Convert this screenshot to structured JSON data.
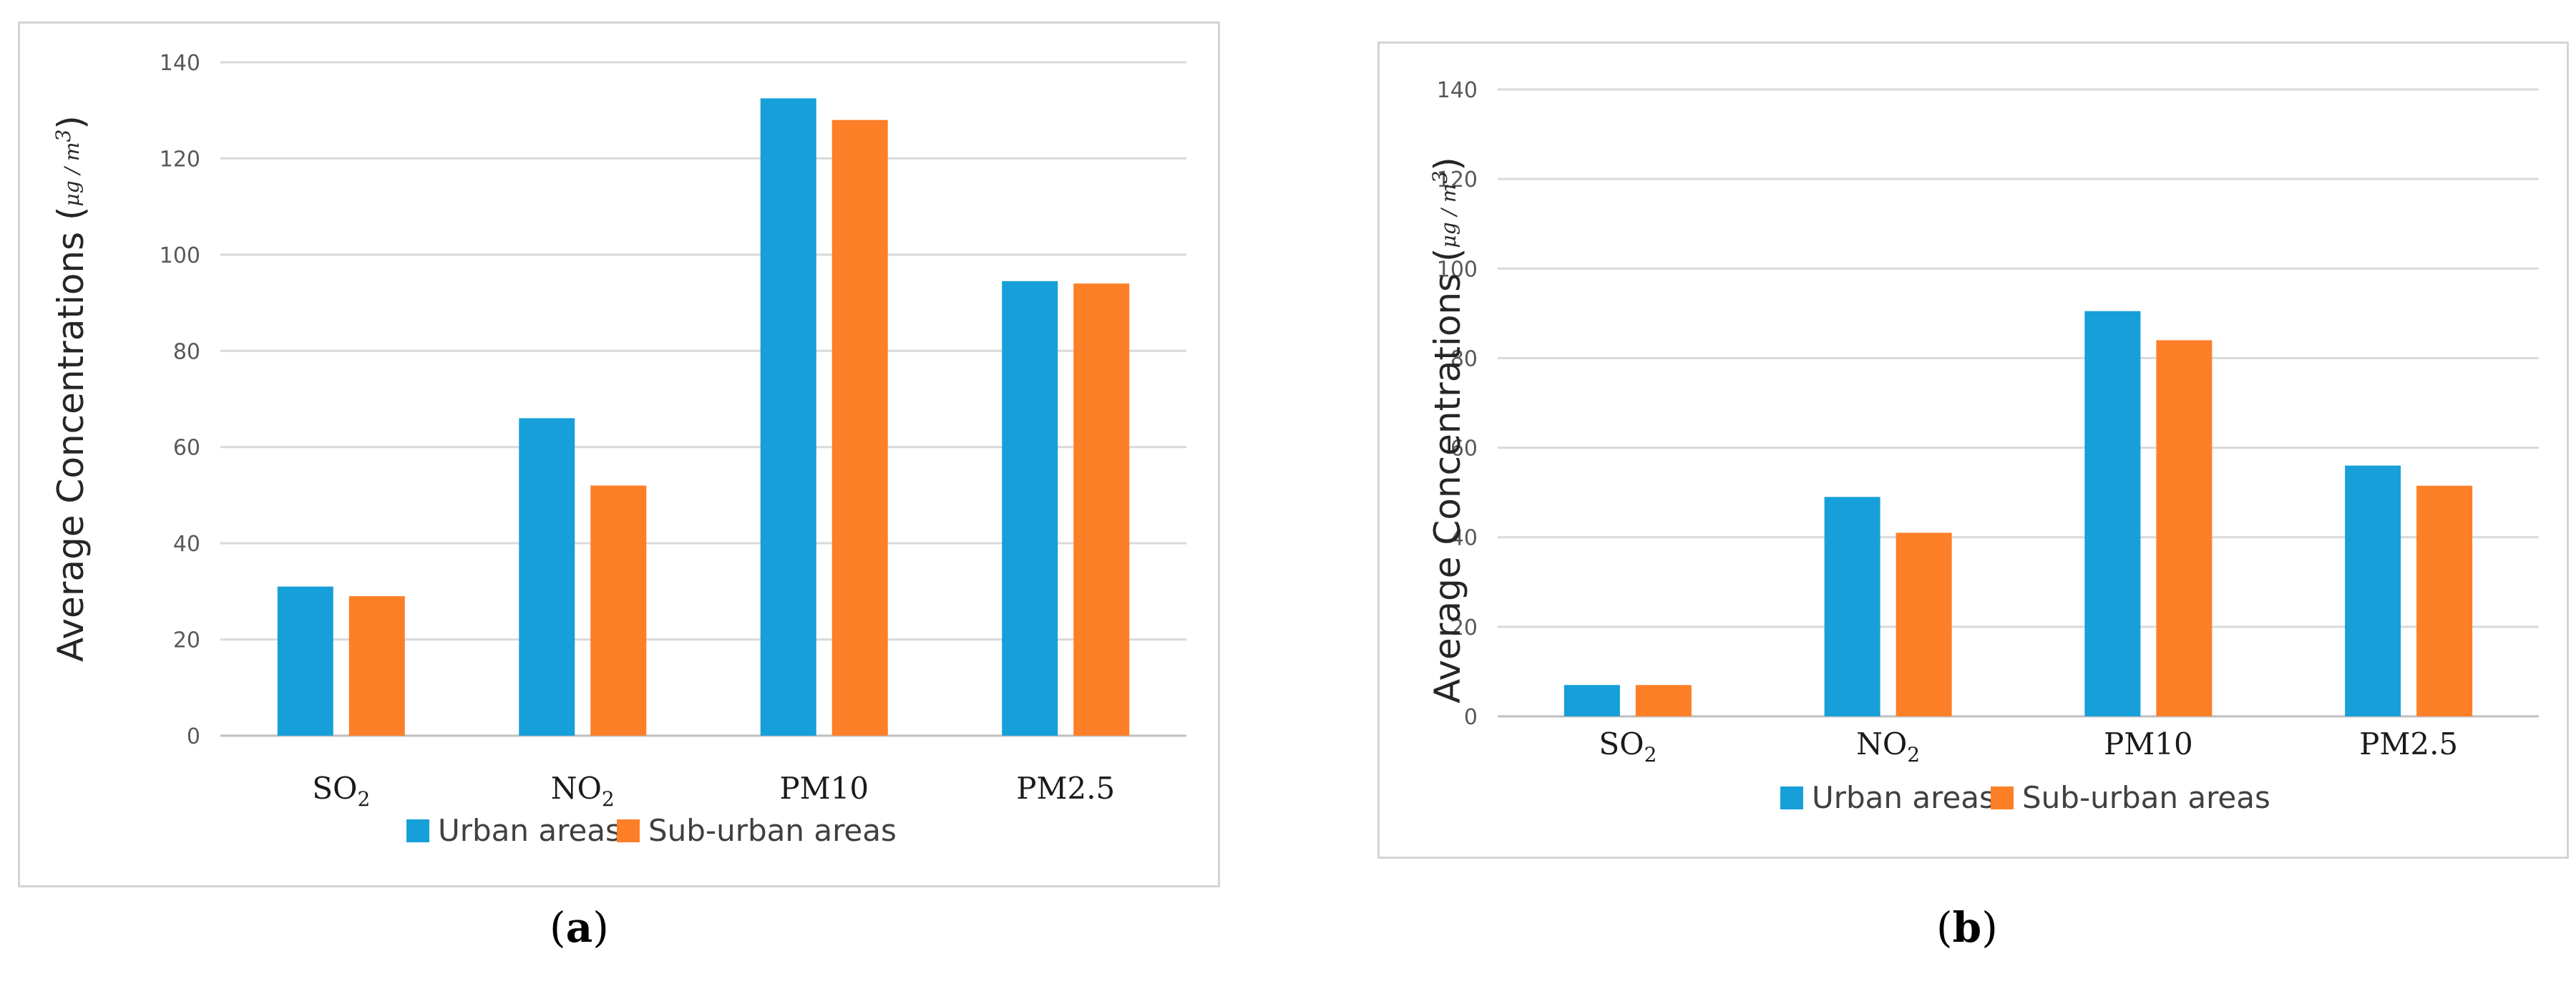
{
  "chart_data": [
    {
      "type": "bar",
      "panel": "(a)",
      "title": "",
      "ylabel": "Average Concentrations",
      "yunit": "μg / m3",
      "xlabel": "",
      "ylim": [
        0,
        140
      ],
      "yticks": [
        0,
        20,
        40,
        60,
        80,
        100,
        120,
        140
      ],
      "categories": [
        {
          "base": "SO",
          "sub": "2"
        },
        {
          "base": "NO",
          "sub": "2"
        },
        {
          "base": "PM10",
          "sub": ""
        },
        {
          "base": "PM2.5",
          "sub": ""
        }
      ],
      "series": [
        {
          "name": "Urban areas",
          "color": "#169fd8",
          "values": [
            31,
            66,
            132.5,
            94.5
          ]
        },
        {
          "name": "Sub-urban areas",
          "color": "#fd7f27",
          "values": [
            29,
            52,
            128,
            94
          ]
        }
      ],
      "grid": true,
      "legend": "bottom"
    },
    {
      "type": "bar",
      "panel": "(b)",
      "title": "",
      "ylabel": "Average Concentrations",
      "yunit": "μg / m3",
      "xlabel": "",
      "ylim": [
        0,
        140
      ],
      "yticks": [
        0,
        20,
        40,
        60,
        80,
        100,
        120,
        140
      ],
      "categories": [
        {
          "base": "SO",
          "sub": "2"
        },
        {
          "base": "NO",
          "sub": "2"
        },
        {
          "base": "PM10",
          "sub": ""
        },
        {
          "base": "PM2.5",
          "sub": ""
        }
      ],
      "series": [
        {
          "name": "Urban areas",
          "color": "#169fd8",
          "values": [
            7,
            49,
            90.5,
            56
          ]
        },
        {
          "name": "Sub-urban areas",
          "color": "#fd7f27",
          "values": [
            7,
            41,
            84,
            51.5
          ]
        }
      ],
      "grid": true,
      "legend": "bottom"
    }
  ],
  "captions": [
    {
      "open": "(",
      "letter": "a",
      "close": ")"
    },
    {
      "open": "(",
      "letter": "b",
      "close": ")"
    }
  ]
}
